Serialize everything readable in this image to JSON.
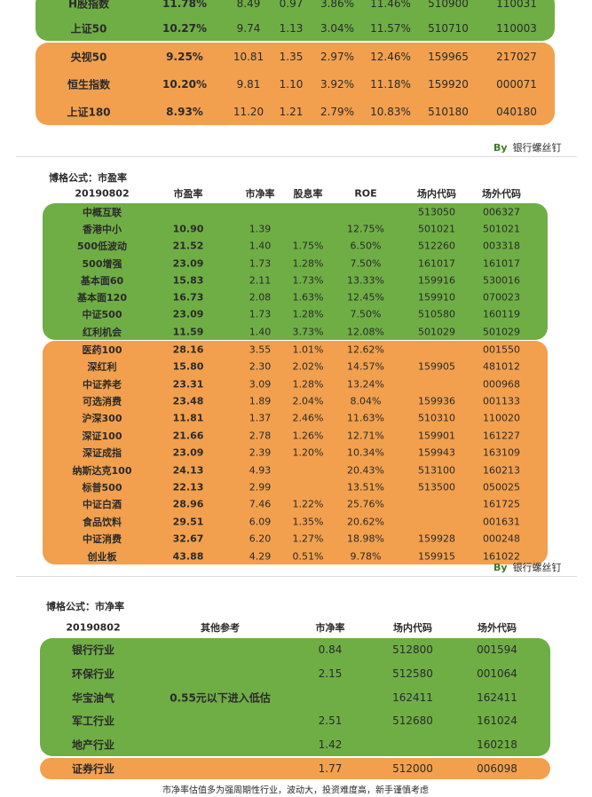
{
  "table1": {
    "rows": [
      [
        "H股指数",
        "11.78%",
        "8.49",
        "0.97",
        "3.86%",
        "11.46%",
        "510900",
        "110031"
      ],
      [
        "上证50",
        "10.27%",
        "9.74",
        "1.13",
        "3.04%",
        "11.57%",
        "510710",
        "110003"
      ],
      [
        "央视50",
        "9.25%",
        "10.81",
        "1.35",
        "2.97%",
        "12.46%",
        "159965",
        "217027"
      ],
      [
        "恒生指数",
        "10.20%",
        "9.81",
        "1.10",
        "3.92%",
        "11.18%",
        "159920",
        "000071"
      ],
      [
        "上证180",
        "8.93%",
        "11.20",
        "1.21",
        "2.79%",
        "10.83%",
        "510180",
        "040180"
      ]
    ]
  },
  "signature": {
    "by": "By",
    "name": "银行螺丝钉"
  },
  "table2": {
    "title": "博格公式：市盈率",
    "header": [
      "20190802",
      "市盈率",
      "市净率",
      "股息率",
      "ROE",
      "场内代码",
      "场外代码"
    ],
    "rows": [
      [
        "中概互联",
        null,
        null,
        null,
        null,
        "513050",
        "006327"
      ],
      [
        "香港中小",
        "10.90",
        "1.39",
        null,
        "12.75%",
        "501021",
        "501021"
      ],
      [
        "500低波动",
        "21.52",
        "1.40",
        "1.75%",
        "6.50%",
        "512260",
        "003318"
      ],
      [
        "500增强",
        "23.09",
        "1.73",
        "1.28%",
        "7.50%",
        "161017",
        "161017"
      ],
      [
        "基本面60",
        "15.83",
        "2.11",
        "1.73%",
        "13.33%",
        "159916",
        "530016"
      ],
      [
        "基本面120",
        "16.73",
        "2.08",
        "1.63%",
        "12.45%",
        "159910",
        "070023"
      ],
      [
        "中证500",
        "23.09",
        "1.73",
        "1.28%",
        "7.50%",
        "510580",
        "160119"
      ],
      [
        "红利机会",
        "11.59",
        "1.40",
        "3.73%",
        "12.08%",
        "501029",
        "501029"
      ],
      [
        "医药100",
        "28.16",
        "3.55",
        "1.01%",
        "12.62%",
        null,
        "001550"
      ],
      [
        "深红利",
        "15.80",
        "2.30",
        "2.02%",
        "14.57%",
        "159905",
        "481012"
      ],
      [
        "中证养老",
        "23.31",
        "3.09",
        "1.28%",
        "13.24%",
        null,
        "000968"
      ],
      [
        "可选消费",
        "23.48",
        "1.89",
        "2.04%",
        "8.04%",
        "159936",
        "001133"
      ],
      [
        "沪深300",
        "11.81",
        "1.37",
        "2.46%",
        "11.63%",
        "510310",
        "110020"
      ],
      [
        "深证100",
        "21.66",
        "2.78",
        "1.26%",
        "12.71%",
        "159901",
        "161227"
      ],
      [
        "深证成指",
        "23.09",
        "2.39",
        "1.20%",
        "10.34%",
        "159943",
        "163109"
      ],
      [
        "纳斯达克100",
        "24.13",
        "4.93",
        null,
        "20.43%",
        "513100",
        "160213"
      ],
      [
        "标普500",
        "22.13",
        "2.99",
        null,
        "13.51%",
        "513500",
        "050025"
      ],
      [
        "中证白酒",
        "28.96",
        "7.46",
        "1.22%",
        "25.76%",
        null,
        "161725"
      ],
      [
        "食品饮料",
        "29.51",
        "6.09",
        "1.35%",
        "20.62%",
        null,
        "001631"
      ],
      [
        "中证消费",
        "32.67",
        "6.20",
        "1.27%",
        "18.98%",
        "159928",
        "000248"
      ],
      [
        "创业板",
        "43.88",
        "4.29",
        "0.51%",
        "9.78%",
        "159915",
        "161022"
      ]
    ]
  },
  "table3": {
    "title": "博格公式：市净率",
    "header": [
      "20190802",
      "其他参考",
      "市净率",
      "场内代码",
      "场外代码"
    ],
    "rows": [
      [
        "银行行业",
        null,
        "0.84",
        "512800",
        "001594"
      ],
      [
        "环保行业",
        null,
        "2.15",
        "512580",
        "001064"
      ],
      [
        "华宝油气",
        "0.55元以下进入低估",
        null,
        "162411",
        "162411"
      ],
      [
        "军工行业",
        null,
        "2.51",
        "512680",
        "161024"
      ],
      [
        "地产行业",
        null,
        "1.42",
        null,
        "160218"
      ],
      [
        "证券行业",
        null,
        "1.77",
        "512000",
        "006098"
      ]
    ],
    "note": "市净率估值多为强周期性行业，波动大，投资难度高，新手谨慎考虑"
  }
}
